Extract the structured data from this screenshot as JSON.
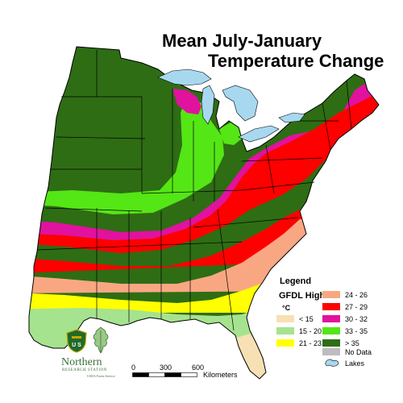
{
  "title": {
    "line1": "Mean July-January",
    "line2": "Temperature Change"
  },
  "legend": {
    "heading": "Legend",
    "scenario": "GFDL High",
    "unit": "°C",
    "items": [
      {
        "label": "< 15",
        "color": "#f7e0b4"
      },
      {
        "label": "15 - 20",
        "color": "#a6e38e"
      },
      {
        "label": "21 - 23",
        "color": "#ffff00"
      },
      {
        "label": "24 - 26",
        "color": "#f9a782"
      },
      {
        "label": "27 - 29",
        "color": "#ff0000"
      },
      {
        "label": "30 - 32",
        "color": "#e0129e"
      },
      {
        "label": "33 - 35",
        "color": "#55e615"
      },
      {
        "label": "> 35",
        "color": "#2e6d14"
      },
      {
        "label": "No Data",
        "color": "#bdbdbd"
      },
      {
        "label": "Lakes",
        "color": "#a8d8f0"
      }
    ]
  },
  "scale": {
    "ticks": [
      "0",
      "300",
      "600"
    ],
    "unit": "Kilometers"
  },
  "logo": {
    "org_line1": "Northern",
    "org_line2": "RESEARCH STATION",
    "org_line3": "USDA Forest Service",
    "shield_text": "U S"
  },
  "colors": {
    "state_border": "#000000",
    "lake": "#a8d8f0",
    "land_outline": "#000000"
  }
}
